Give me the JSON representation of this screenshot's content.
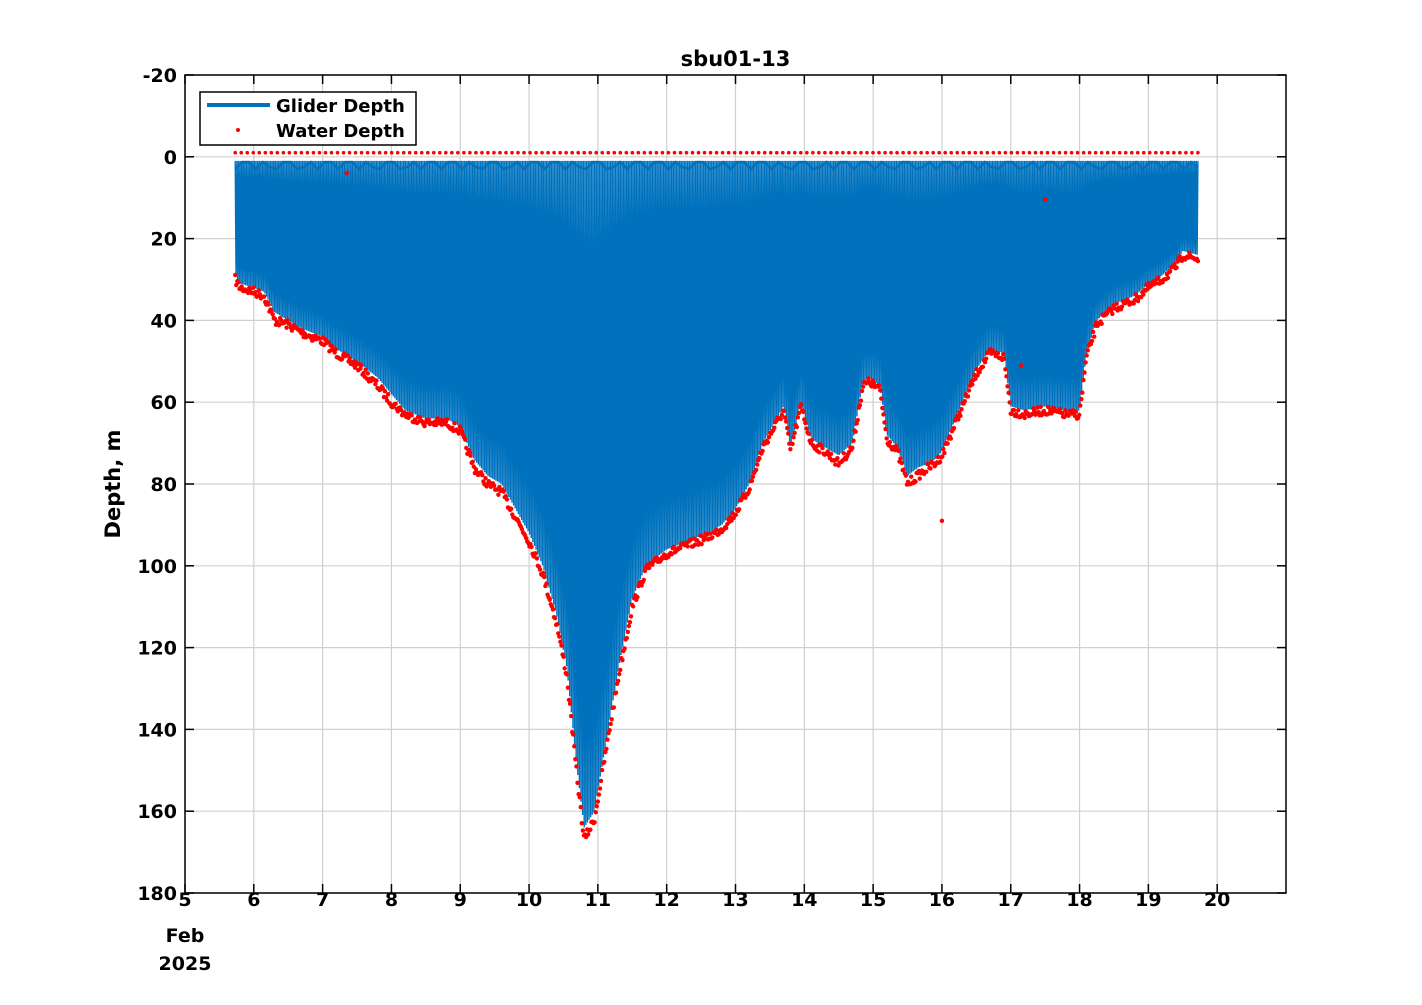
{
  "chart_data": {
    "type": "line",
    "title": "sbu01-13",
    "ylabel": "Depth, m",
    "xlabel": "",
    "x_date_context": [
      "Feb",
      "2025"
    ],
    "y_reversed": true,
    "ylim": [
      -20,
      180
    ],
    "y_ticks": [
      -20,
      0,
      20,
      40,
      60,
      80,
      100,
      120,
      140,
      160,
      180
    ],
    "xlim": [
      5,
      21
    ],
    "x_ticks": [
      5,
      6,
      7,
      8,
      9,
      10,
      11,
      12,
      13,
      14,
      15,
      16,
      17,
      18,
      19,
      20
    ],
    "grid": true,
    "legend_position": "top-left",
    "colors": {
      "glider": "#0072BD",
      "water": "#FF0000"
    },
    "series": [
      {
        "name": "Glider Depth",
        "style": "line",
        "surface_depth": 1,
        "x": [
          5.73,
          5.8,
          6.0,
          6.15,
          6.3,
          6.5,
          6.7,
          7.0,
          7.2,
          7.5,
          7.8,
          8.0,
          8.2,
          8.5,
          8.8,
          9.0,
          9.2,
          9.4,
          9.6,
          9.8,
          10.0,
          10.2,
          10.4,
          10.55,
          10.7,
          10.8,
          10.95,
          11.1,
          11.3,
          11.5,
          11.7,
          12.0,
          12.3,
          12.6,
          12.8,
          13.0,
          13.2,
          13.4,
          13.6,
          13.7,
          13.8,
          13.95,
          14.1,
          14.3,
          14.5,
          14.7,
          14.85,
          14.95,
          15.1,
          15.2,
          15.35,
          15.5,
          15.65,
          15.8,
          15.9,
          16.0,
          16.1,
          16.3,
          16.5,
          16.7,
          16.9,
          17.0,
          17.2,
          17.5,
          17.8,
          18.0,
          18.1,
          18.25,
          18.5,
          18.8,
          19.0,
          19.2,
          19.4,
          19.5,
          19.72
        ],
        "bottom": [
          29,
          31,
          32,
          33,
          38,
          40,
          42,
          44,
          47,
          50,
          54,
          58,
          62,
          64,
          64,
          66,
          74,
          78,
          80,
          86,
          92,
          100,
          112,
          125,
          150,
          164,
          160,
          145,
          125,
          108,
          100,
          96,
          94,
          92,
          90,
          86,
          80,
          70,
          64,
          61,
          71,
          60,
          69,
          71,
          73,
          70,
          55,
          54,
          56,
          68,
          71,
          78,
          76,
          75,
          74,
          72,
          68,
          60,
          52,
          47,
          48,
          61,
          62,
          61,
          62,
          62,
          48,
          40,
          36,
          34,
          31,
          29,
          26,
          23,
          24
        ]
      },
      {
        "name": "Water Depth",
        "style": "markers",
        "surface_depth": -1,
        "x": [
          5.73,
          5.8,
          6.0,
          6.15,
          6.3,
          6.5,
          6.7,
          7.0,
          7.2,
          7.5,
          7.8,
          8.0,
          8.2,
          8.5,
          8.8,
          9.0,
          9.2,
          9.4,
          9.6,
          9.8,
          10.0,
          10.2,
          10.4,
          10.55,
          10.7,
          10.8,
          10.95,
          11.1,
          11.3,
          11.5,
          11.7,
          12.0,
          12.3,
          12.6,
          12.8,
          13.0,
          13.2,
          13.4,
          13.6,
          13.7,
          13.8,
          13.95,
          14.1,
          14.3,
          14.5,
          14.7,
          14.85,
          14.95,
          15.1,
          15.2,
          15.35,
          15.5,
          15.65,
          15.8,
          15.9,
          16.0,
          16.1,
          16.3,
          16.5,
          16.7,
          16.9,
          17.0,
          17.2,
          17.5,
          17.8,
          18.0,
          18.1,
          18.25,
          18.5,
          18.8,
          19.0,
          19.2,
          19.4,
          19.5,
          19.72
        ],
        "values": [
          30,
          32,
          33,
          34,
          40,
          41,
          43,
          45,
          48,
          51,
          56,
          60,
          63,
          65,
          65,
          67,
          76,
          80,
          82,
          88,
          94,
          102,
          114,
          127,
          152,
          167,
          162,
          147,
          127,
          110,
          101,
          97,
          95,
          93,
          91,
          87,
          81,
          71,
          65,
          62,
          72,
          61,
          70,
          72,
          75,
          71,
          56,
          55,
          57,
          69,
          72,
          80,
          78,
          76,
          75,
          73,
          69,
          61,
          53,
          48,
          49,
          62,
          63,
          62,
          63,
          63,
          49,
          41,
          37,
          35,
          32,
          30,
          27,
          24,
          25
        ],
        "outliers": [
          [
            7.35,
            4
          ],
          [
            17.5,
            10.5
          ],
          [
            16.0,
            89
          ],
          [
            17.15,
            51
          ]
        ]
      }
    ]
  }
}
